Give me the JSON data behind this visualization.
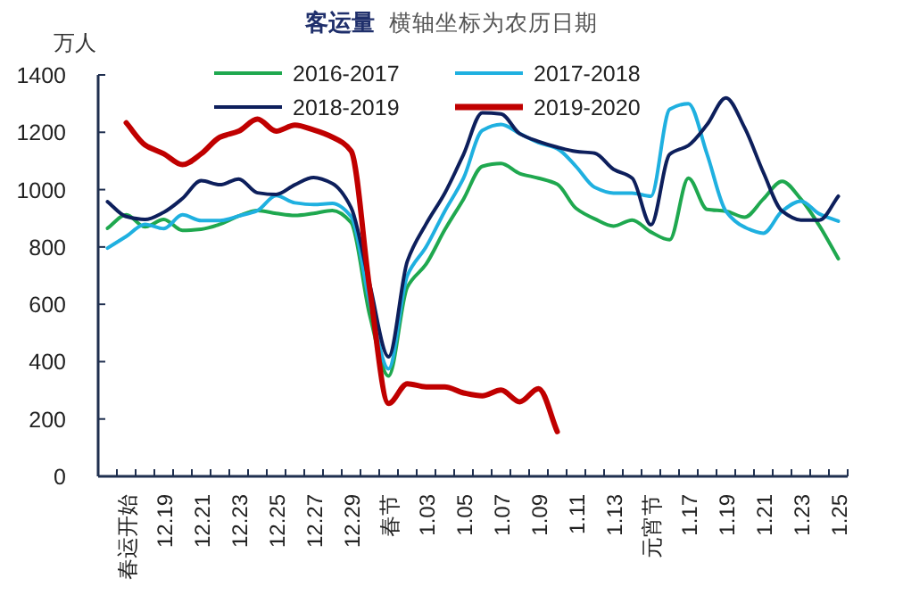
{
  "chart_data": {
    "type": "line",
    "title": "客运量",
    "subtitle": "横轴坐标为农历日期",
    "ylabel": "万人",
    "categories": [
      null,
      "春运开始",
      null,
      "12.19",
      null,
      "12.21",
      null,
      "12.23",
      null,
      "12.25",
      null,
      "12.27",
      null,
      "12.29",
      null,
      "春节",
      null,
      "1.03",
      null,
      "1.05",
      null,
      "1.07",
      null,
      "1.09",
      null,
      "1.11",
      null,
      "1.13",
      null,
      "元宵节",
      null,
      "1.17",
      null,
      "1.19",
      null,
      "1.21",
      null,
      "1.23",
      null,
      "1.25"
    ],
    "ylim": [
      0,
      1400
    ],
    "yticks": [
      0,
      200,
      400,
      600,
      800,
      1000,
      1200,
      1400
    ],
    "grid": false,
    "legend": "top",
    "marker": "none",
    "line_style": "solid",
    "series": [
      {
        "name": "2016-2017",
        "color": "#1fa84f",
        "values": [
          865,
          912,
          870,
          896,
          858,
          862,
          879,
          908,
          927,
          917,
          910,
          917,
          927,
          885,
          560,
          350,
          660,
          740,
          860,
          967,
          1081,
          1091,
          1056,
          1040,
          1019,
          935,
          898,
          873,
          894,
          852,
          825,
          1040,
          931,
          925,
          904,
          967,
          1029,
          967,
          873,
          759
        ]
      },
      {
        "name": "2017-2018",
        "color": "#1fb0e0",
        "values": [
          796,
          837,
          879,
          864,
          912,
          892,
          892,
          908,
          927,
          979,
          954,
          948,
          952,
          906,
          604,
          375,
          700,
          800,
          925,
          1040,
          1206,
          1227,
          1195,
          1164,
          1143,
          1081,
          1008,
          988,
          988,
          977,
          1280,
          1300,
          1123,
          925,
          869,
          848,
          925,
          960,
          915,
          890
        ]
      },
      {
        "name": "2018-2019",
        "color": "#0d1f5c",
        "values": [
          958,
          906,
          896,
          921,
          969,
          1031,
          1017,
          1037,
          989,
          983,
          1017,
          1042,
          1021,
          937,
          667,
          417,
          750,
          880,
          988,
          1123,
          1268,
          1264,
          1195,
          1168,
          1148,
          1133,
          1127,
          1071,
          1040,
          877,
          1123,
          1154,
          1227,
          1320,
          1216,
          1060,
          925,
          894,
          894,
          977
        ]
      },
      {
        "name": "2019-2020",
        "color": "#c00000",
        "values": [
          null,
          1233,
          1156,
          1125,
          1087,
          1125,
          1183,
          1204,
          1246,
          1204,
          1225,
          1208,
          1183,
          1135,
          650,
          254,
          323,
          312,
          312,
          291,
          281,
          301,
          260,
          306,
          156,
          null,
          null,
          null,
          null,
          null,
          null,
          null,
          null,
          null,
          null,
          null,
          null,
          null,
          null,
          null
        ]
      }
    ]
  }
}
